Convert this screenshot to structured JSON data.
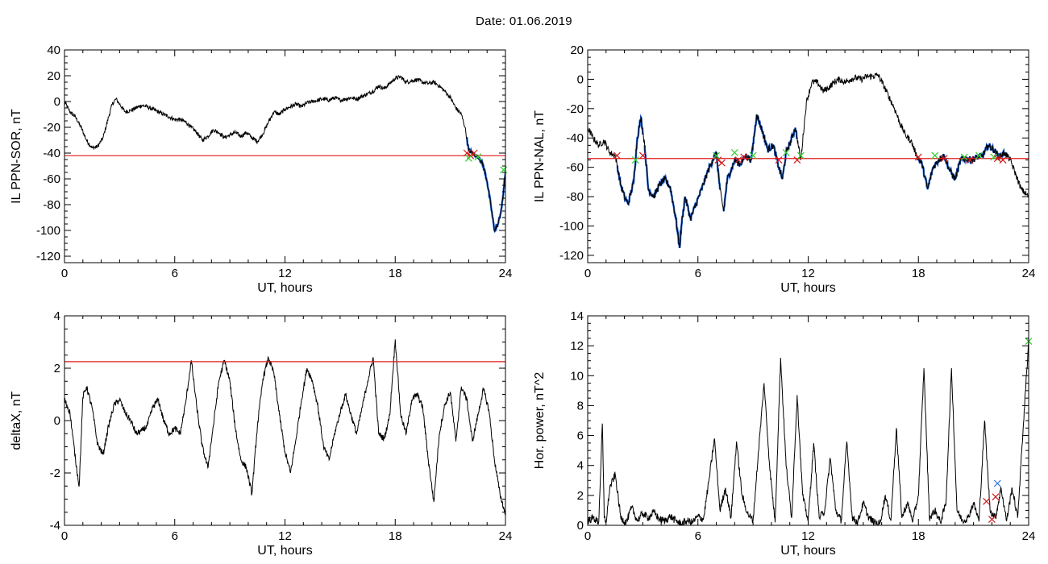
{
  "title": "Date:  01.06.2019",
  "colors": {
    "data": "#000000",
    "threshold": "#e41a1c",
    "fill": "#1f5fd0",
    "green": "#2fd12f",
    "cross_red": "#d11a1a",
    "cross_blue": "#2a6fdc"
  },
  "chart_data": [
    {
      "type": "line",
      "ylabel": "IL PPN-SOR, nT",
      "xlabel": "UT, hours",
      "xlim": [
        0,
        24
      ],
      "ylim": [
        -125,
        40
      ],
      "xticks": [
        0,
        6,
        12,
        18,
        24
      ],
      "yticks": [
        -120,
        -100,
        -80,
        -60,
        -40,
        -20,
        0,
        20,
        40
      ],
      "threshold": -42,
      "noise": 1.6,
      "x": [
        0,
        0.3,
        0.6,
        0.9,
        1.2,
        1.5,
        1.8,
        2.1,
        2.4,
        2.6,
        2.8,
        3.0,
        3.3,
        3.6,
        3.9,
        4.2,
        4.5,
        4.8,
        5.1,
        5.4,
        5.7,
        6.0,
        6.3,
        6.6,
        6.9,
        7.2,
        7.5,
        7.8,
        8.1,
        8.4,
        8.7,
        9.0,
        9.3,
        9.6,
        9.9,
        10.2,
        10.5,
        10.8,
        11.1,
        11.4,
        11.7,
        12.0,
        12.3,
        12.6,
        12.9,
        13.2,
        13.5,
        13.8,
        14.1,
        14.4,
        14.7,
        15.0,
        15.3,
        15.6,
        15.9,
        16.2,
        16.5,
        16.8,
        17.1,
        17.4,
        17.7,
        18.0,
        18.3,
        18.6,
        18.9,
        19.2,
        19.5,
        19.8,
        20.1,
        20.4,
        20.7,
        21.0,
        21.3,
        21.6,
        21.8,
        22.0,
        22.2,
        22.4,
        22.6,
        22.8,
        23.0,
        23.2,
        23.4,
        23.6,
        23.8,
        24.0
      ],
      "y": [
        0,
        -8,
        -12,
        -20,
        -30,
        -36,
        -35,
        -28,
        -12,
        -2,
        2,
        -2,
        -8,
        -7,
        -5,
        -3,
        -4,
        -6,
        -8,
        -10,
        -12,
        -14,
        -14,
        -16,
        -20,
        -24,
        -30,
        -27,
        -22,
        -24,
        -28,
        -26,
        -24,
        -27,
        -24,
        -28,
        -31,
        -25,
        -16,
        -8,
        -10,
        -6,
        -4,
        -2,
        -4,
        -1,
        0,
        1,
        2,
        1,
        3,
        1,
        2,
        3,
        2,
        4,
        6,
        8,
        12,
        10,
        14,
        18,
        19,
        15,
        16,
        17,
        15,
        14,
        15,
        12,
        8,
        3,
        -5,
        -10,
        -20,
        -38,
        -40,
        -42,
        -44,
        -50,
        -62,
        -80,
        -100,
        -95,
        -82,
        -55
      ],
      "fill_from": 21.9,
      "markers": [
        {
          "x": 21.9,
          "y": -40,
          "c": "cross_red"
        },
        {
          "x": 22.1,
          "y": -42,
          "c": "cross_red"
        },
        {
          "x": 22.3,
          "y": -40,
          "c": "cross_red"
        },
        {
          "x": 22.0,
          "y": -44,
          "c": "green"
        },
        {
          "x": 22.5,
          "y": -43,
          "c": "green"
        },
        {
          "x": 23.9,
          "y": -53,
          "c": "green"
        }
      ]
    },
    {
      "type": "line",
      "ylabel": "IL PPN-NAL, nT",
      "xlabel": "UT, hours",
      "xlim": [
        0,
        24
      ],
      "ylim": [
        -125,
        20
      ],
      "xticks": [
        0,
        6,
        12,
        18,
        24
      ],
      "yticks": [
        -120,
        -100,
        -80,
        -60,
        -40,
        -20,
        0,
        20
      ],
      "threshold": -54,
      "noise": 2.2,
      "x": [
        0,
        0.3,
        0.6,
        0.9,
        1.2,
        1.5,
        1.8,
        2.0,
        2.2,
        2.5,
        2.7,
        2.9,
        3.1,
        3.3,
        3.6,
        3.9,
        4.2,
        4.5,
        4.8,
        5.0,
        5.1,
        5.3,
        5.6,
        5.9,
        6.2,
        6.5,
        6.8,
        7.0,
        7.2,
        7.4,
        7.6,
        7.8,
        8.0,
        8.3,
        8.6,
        8.9,
        9.2,
        9.5,
        9.8,
        10.1,
        10.4,
        10.6,
        10.8,
        11.0,
        11.3,
        11.6,
        11.9,
        12.2,
        12.5,
        12.8,
        13.1,
        13.4,
        13.7,
        14.0,
        14.3,
        14.6,
        14.9,
        15.2,
        15.5,
        15.8,
        16.1,
        16.4,
        16.7,
        17.0,
        17.3,
        17.6,
        17.9,
        18.2,
        18.5,
        18.8,
        19.1,
        19.4,
        19.7,
        20.0,
        20.3,
        20.6,
        20.9,
        21.2,
        21.5,
        21.8,
        22.1,
        22.4,
        22.7,
        23.0,
        23.3,
        23.6,
        24.0
      ],
      "y": [
        -33,
        -40,
        -45,
        -42,
        -50,
        -52,
        -72,
        -80,
        -85,
        -70,
        -40,
        -26,
        -45,
        -75,
        -80,
        -72,
        -68,
        -74,
        -95,
        -115,
        -100,
        -80,
        -95,
        -85,
        -75,
        -64,
        -55,
        -50,
        -75,
        -90,
        -68,
        -62,
        -55,
        -58,
        -52,
        -55,
        -24,
        -35,
        -48,
        -45,
        -60,
        -68,
        -50,
        -44,
        -33,
        -55,
        -16,
        -2,
        -2,
        -8,
        -6,
        -2,
        0,
        -2,
        0,
        1,
        0,
        2,
        2,
        3,
        -4,
        -12,
        -20,
        -30,
        -38,
        -42,
        -52,
        -58,
        -75,
        -60,
        -55,
        -52,
        -62,
        -68,
        -55,
        -54,
        -55,
        -53,
        -52,
        -45,
        -48,
        -53,
        -50,
        -55,
        -65,
        -75,
        -80
      ],
      "fill_spans": [
        [
          1.6,
          3.0
        ],
        [
          3.1,
          7.2
        ],
        [
          7.4,
          11.4
        ],
        [
          18.0,
          22.8
        ]
      ],
      "markers": [
        {
          "x": 1.6,
          "y": -52,
          "c": "cross_red"
        },
        {
          "x": 3.0,
          "y": -52,
          "c": "cross_red"
        },
        {
          "x": 2.6,
          "y": -55,
          "c": "green"
        },
        {
          "x": 7.0,
          "y": -52,
          "c": "green"
        },
        {
          "x": 7.1,
          "y": -55,
          "c": "cross_red"
        },
        {
          "x": 7.3,
          "y": -57,
          "c": "cross_red"
        },
        {
          "x": 8.0,
          "y": -50,
          "c": "green"
        },
        {
          "x": 8.2,
          "y": -55,
          "c": "cross_red"
        },
        {
          "x": 8.5,
          "y": -53,
          "c": "cross_red"
        },
        {
          "x": 9.0,
          "y": -52,
          "c": "green"
        },
        {
          "x": 10.4,
          "y": -55,
          "c": "cross_red"
        },
        {
          "x": 10.8,
          "y": -50,
          "c": "green"
        },
        {
          "x": 11.4,
          "y": -55,
          "c": "cross_red"
        },
        {
          "x": 11.6,
          "y": -52,
          "c": "green"
        },
        {
          "x": 18.0,
          "y": -53,
          "c": "cross_red"
        },
        {
          "x": 18.9,
          "y": -52,
          "c": "green"
        },
        {
          "x": 19.4,
          "y": -54,
          "c": "cross_red"
        },
        {
          "x": 20.5,
          "y": -53,
          "c": "green"
        },
        {
          "x": 20.8,
          "y": -55,
          "c": "cross_red"
        },
        {
          "x": 21.3,
          "y": -52,
          "c": "green"
        },
        {
          "x": 22.1,
          "y": -53,
          "c": "green"
        },
        {
          "x": 22.3,
          "y": -54,
          "c": "cross_red"
        },
        {
          "x": 22.6,
          "y": -55,
          "c": "cross_red"
        }
      ]
    },
    {
      "type": "line",
      "ylabel": "deltaX, nT",
      "xlabel": "UT, hours",
      "xlim": [
        0,
        24
      ],
      "ylim": [
        -4,
        4
      ],
      "xticks": [
        0,
        6,
        12,
        18,
        24
      ],
      "yticks": [
        -4,
        -2,
        0,
        2,
        4
      ],
      "threshold": 2.25,
      "noise": 0.12,
      "x": [
        0,
        0.3,
        0.6,
        0.8,
        1.0,
        1.2,
        1.5,
        1.8,
        2.1,
        2.4,
        2.7,
        3.0,
        3.3,
        3.6,
        3.9,
        4.2,
        4.5,
        4.8,
        5.1,
        5.4,
        5.7,
        6.0,
        6.3,
        6.6,
        6.9,
        7.2,
        7.5,
        7.8,
        8.1,
        8.4,
        8.7,
        9.0,
        9.3,
        9.6,
        9.9,
        10.2,
        10.5,
        10.8,
        11.1,
        11.4,
        11.7,
        12.0,
        12.3,
        12.6,
        12.9,
        13.2,
        13.5,
        13.8,
        14.1,
        14.4,
        14.7,
        15.0,
        15.3,
        15.6,
        15.9,
        16.2,
        16.5,
        16.8,
        17.1,
        17.4,
        17.7,
        18.0,
        18.3,
        18.6,
        18.9,
        19.2,
        19.5,
        19.8,
        20.1,
        20.4,
        20.7,
        21.0,
        21.3,
        21.6,
        21.9,
        22.2,
        22.5,
        22.8,
        23.1,
        23.4,
        23.7,
        24.0
      ],
      "y": [
        0.8,
        0.3,
        -1.5,
        -2.5,
        0.9,
        1.3,
        0.5,
        -0.9,
        -1.3,
        -0.2,
        0.6,
        0.8,
        0.3,
        0,
        -0.5,
        -0.4,
        -0.2,
        0.5,
        0.8,
        0,
        -0.5,
        -0.3,
        -0.5,
        0.7,
        2.3,
        0.5,
        -1,
        -1.8,
        -0.2,
        1.5,
        2.3,
        1.5,
        -0.3,
        -1.5,
        -1.8,
        -2.8,
        -0.2,
        1.6,
        2.4,
        1.8,
        0.2,
        -1.2,
        -2,
        -0.7,
        0.8,
        2,
        1.5,
        0.5,
        -1,
        -1.5,
        -0.5,
        0.3,
        1,
        0.2,
        -0.5,
        0.5,
        1.5,
        2.4,
        -0.5,
        -0.7,
        0.2,
        3.1,
        0.2,
        -0.5,
        0.8,
        1,
        0.5,
        -1.5,
        -3.1,
        -0.5,
        0.6,
        1.1,
        -0.8,
        1.3,
        0.8,
        -0.8,
        0.2,
        1.2,
        0.4,
        -1.5,
        -2.8,
        -3.6
      ],
      "markers": []
    },
    {
      "type": "line",
      "ylabel": "Hor. power, nT^2",
      "xlabel": "UT, hours",
      "xlim": [
        0,
        24
      ],
      "ylim": [
        0,
        14
      ],
      "xticks": [
        0,
        6,
        12,
        18,
        24
      ],
      "yticks": [
        0,
        2,
        4,
        6,
        8,
        10,
        12,
        14
      ],
      "noise": 0.25,
      "x": [
        0,
        0.3,
        0.6,
        0.8,
        0.9,
        1.0,
        1.2,
        1.5,
        1.8,
        2.1,
        2.4,
        2.7,
        3.0,
        3.3,
        3.6,
        3.9,
        4.2,
        4.5,
        4.8,
        5.1,
        5.4,
        5.7,
        6.0,
        6.3,
        6.6,
        6.9,
        7.2,
        7.5,
        7.8,
        8.1,
        8.4,
        8.7,
        9.0,
        9.3,
        9.6,
        9.9,
        10.2,
        10.5,
        10.8,
        11.1,
        11.4,
        11.7,
        12.0,
        12.3,
        12.6,
        12.9,
        13.2,
        13.5,
        13.8,
        14.1,
        14.4,
        14.7,
        15.0,
        15.3,
        15.6,
        15.9,
        16.2,
        16.5,
        16.8,
        17.1,
        17.4,
        17.7,
        18.0,
        18.3,
        18.6,
        18.9,
        19.2,
        19.5,
        19.8,
        20.1,
        20.4,
        20.7,
        21.0,
        21.3,
        21.6,
        21.9,
        22.2,
        22.5,
        22.8,
        23.1,
        23.4,
        23.7,
        24.0
      ],
      "y": [
        0.3,
        0.5,
        0.2,
        6.8,
        0.5,
        0.2,
        2.5,
        3.4,
        0.5,
        0.2,
        1.2,
        0.3,
        0.8,
        0.5,
        0.9,
        0.4,
        0.3,
        0.6,
        0.3,
        0.1,
        0.3,
        0.2,
        0.6,
        0.4,
        3,
        5.8,
        1,
        2.5,
        0.5,
        5.6,
        2,
        0.8,
        0.3,
        5,
        9.5,
        4,
        0.2,
        11.2,
        4,
        0.5,
        8.7,
        2,
        0.3,
        5.5,
        0.5,
        1,
        4.5,
        1,
        0.3,
        5.6,
        0.5,
        0.2,
        1.5,
        0.5,
        0.2,
        0.1,
        2,
        0.3,
        6.5,
        0.5,
        1.5,
        0.3,
        2,
        10.5,
        0.5,
        1,
        0.2,
        1.5,
        10.5,
        1,
        0.3,
        0.5,
        1.5,
        0.3,
        7,
        1,
        0.5,
        2.5,
        0.3,
        2.5,
        0.5,
        6.5,
        12.3
      ],
      "markers": [
        {
          "x": 21.7,
          "y": 1.6,
          "c": "cross_red"
        },
        {
          "x": 22.0,
          "y": 0.4,
          "c": "cross_red"
        },
        {
          "x": 22.2,
          "y": 1.9,
          "c": "cross_red"
        },
        {
          "x": 22.3,
          "y": 2.8,
          "c": "cross_blue"
        },
        {
          "x": 24.0,
          "y": 12.3,
          "c": "green"
        }
      ]
    }
  ]
}
